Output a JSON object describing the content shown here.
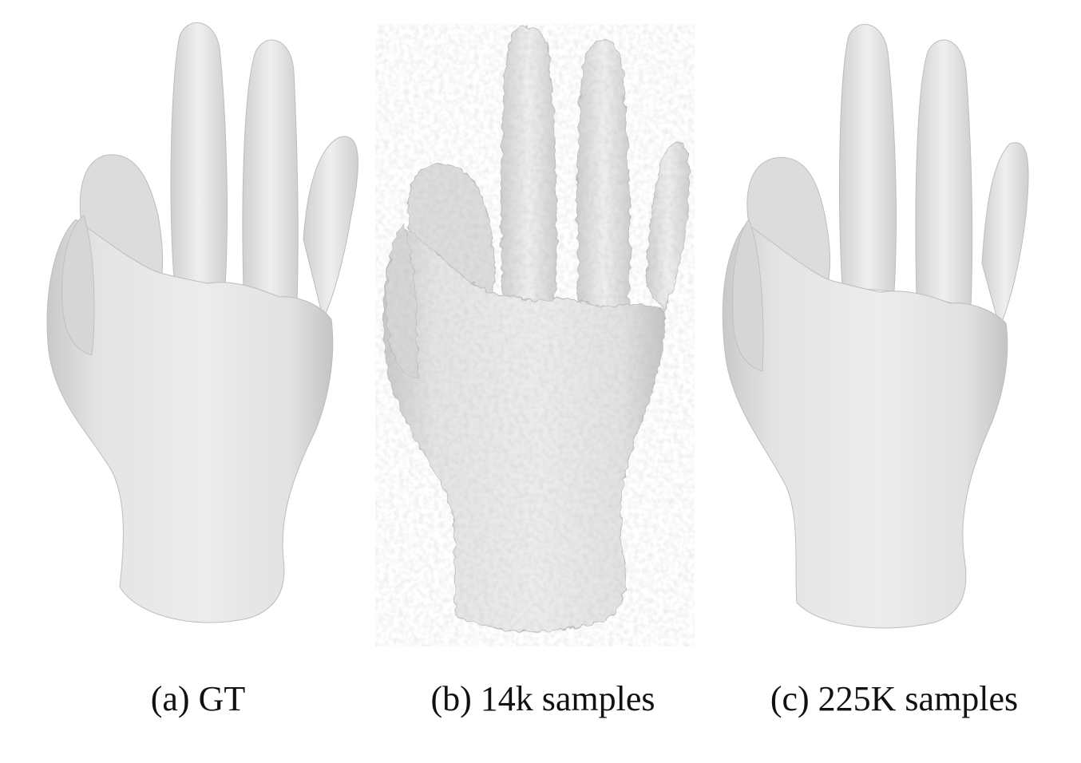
{
  "figure": {
    "panels": [
      {
        "id": "a",
        "caption": "(a) GT"
      },
      {
        "id": "b",
        "caption": "(b) 14k samples"
      },
      {
        "id": "c",
        "caption": "(c) 225K samples"
      }
    ]
  },
  "colors": {
    "mesh_fill": "#e6e6e6",
    "mesh_shadow": "#c8c8c8",
    "background": "#ffffff"
  }
}
